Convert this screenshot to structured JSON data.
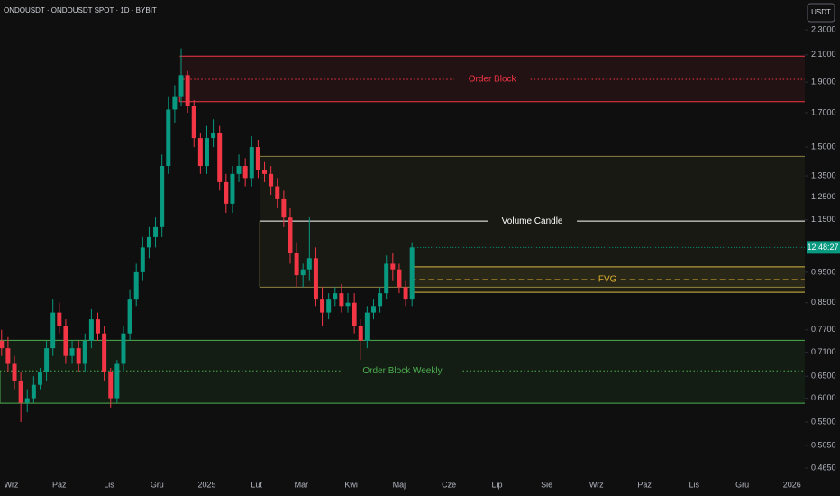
{
  "header": {
    "symbol": "ONDOUSDT · ONDOUSDT SPOT · 1D · BYBIT",
    "currency": "USDT",
    "time": "12:48:27"
  },
  "chart_data": {
    "type": "candlestick",
    "log_y": true,
    "up_color": "#089981",
    "down_color": "#f23645",
    "x": [
      -6,
      -2,
      2,
      6,
      10,
      14,
      18,
      22,
      26,
      30,
      34,
      38,
      42,
      46,
      50,
      54,
      58,
      62,
      66,
      70,
      74,
      78,
      82,
      86,
      90,
      94,
      98,
      102,
      106,
      110,
      114,
      118,
      122,
      126,
      130,
      134,
      138,
      142,
      146,
      150,
      154,
      158,
      162,
      166,
      170,
      174,
      178,
      182,
      186,
      190,
      194,
      198,
      202,
      206,
      210,
      214,
      218,
      222,
      226,
      230,
      234,
      238,
      242,
      246,
      250
    ],
    "open": [
      0.74,
      0.72,
      0.68,
      0.64,
      0.59,
      0.6,
      0.63,
      0.66,
      0.72,
      0.82,
      0.78,
      0.7,
      0.72,
      0.68,
      0.74,
      0.8,
      0.76,
      0.66,
      0.6,
      0.68,
      0.76,
      0.86,
      0.95,
      1.04,
      1.08,
      1.12,
      1.4,
      1.72,
      1.8,
      1.95,
      1.74,
      1.55,
      1.4,
      1.55,
      1.58,
      1.32,
      1.22,
      1.36,
      1.4,
      1.34,
      1.5,
      1.38,
      1.36,
      1.3,
      1.24,
      1.16,
      1.02,
      0.94,
      0.96,
      1.0,
      0.86,
      0.82,
      0.86,
      0.88,
      0.84,
      0.85,
      0.78,
      0.74,
      0.82,
      0.84,
      0.88,
      0.98,
      0.96,
      0.9,
      0.86
    ],
    "high": [
      0.77,
      0.75,
      0.7,
      0.66,
      0.62,
      0.65,
      0.67,
      0.74,
      0.86,
      0.85,
      0.8,
      0.74,
      0.74,
      0.76,
      0.83,
      0.82,
      0.78,
      0.67,
      0.69,
      0.78,
      0.89,
      0.98,
      1.08,
      1.12,
      1.16,
      1.46,
      1.8,
      1.88,
      2.15,
      1.98,
      1.78,
      1.58,
      1.62,
      1.66,
      1.62,
      1.36,
      1.4,
      1.46,
      1.44,
      1.56,
      1.54,
      1.42,
      1.4,
      1.34,
      1.28,
      1.2,
      1.06,
      0.98,
      1.16,
      1.04,
      0.9,
      0.88,
      0.9,
      0.91,
      0.88,
      0.88,
      0.8,
      0.84,
      0.86,
      0.9,
      1.01,
      1.02,
      0.98,
      0.92,
      1.06
    ],
    "low": [
      0.7,
      0.66,
      0.62,
      0.55,
      0.57,
      0.59,
      0.62,
      0.64,
      0.7,
      0.76,
      0.68,
      0.68,
      0.66,
      0.66,
      0.72,
      0.74,
      0.64,
      0.58,
      0.59,
      0.66,
      0.74,
      0.84,
      0.92,
      1.0,
      1.04,
      1.08,
      1.36,
      1.64,
      1.74,
      1.7,
      1.5,
      1.36,
      1.36,
      1.5,
      1.28,
      1.18,
      1.18,
      1.32,
      1.3,
      1.3,
      1.34,
      1.32,
      1.26,
      1.2,
      1.12,
      0.98,
      0.9,
      0.9,
      0.92,
      0.84,
      0.78,
      0.8,
      0.84,
      0.82,
      0.82,
      0.76,
      0.69,
      0.72,
      0.8,
      0.82,
      0.86,
      0.92,
      0.88,
      0.84,
      0.84
    ],
    "close": [
      0.72,
      0.68,
      0.64,
      0.59,
      0.6,
      0.63,
      0.66,
      0.72,
      0.82,
      0.78,
      0.7,
      0.72,
      0.68,
      0.74,
      0.8,
      0.76,
      0.66,
      0.6,
      0.68,
      0.76,
      0.86,
      0.95,
      1.04,
      1.08,
      1.12,
      1.4,
      1.72,
      1.8,
      1.95,
      1.74,
      1.55,
      1.4,
      1.55,
      1.58,
      1.32,
      1.22,
      1.36,
      1.4,
      1.34,
      1.5,
      1.38,
      1.36,
      1.3,
      1.24,
      1.16,
      1.02,
      0.94,
      0.96,
      1.0,
      0.86,
      0.82,
      0.86,
      0.88,
      0.84,
      0.85,
      0.78,
      0.74,
      0.82,
      0.84,
      0.88,
      0.98,
      0.96,
      0.9,
      0.86,
      1.04
    ],
    "xlim": [
      -7,
      495
    ],
    "xticks": [
      {
        "value": 0,
        "label": "Wrz"
      },
      {
        "value": 30,
        "label": "Paź"
      },
      {
        "value": 61,
        "label": "Lis"
      },
      {
        "value": 91,
        "label": "Gru"
      },
      {
        "value": 122,
        "label": "2025"
      },
      {
        "value": 153,
        "label": "Lut"
      },
      {
        "value": 181,
        "label": "Mar"
      },
      {
        "value": 212,
        "label": "Kwi"
      },
      {
        "value": 242,
        "label": "Maj"
      },
      {
        "value": 273,
        "label": "Cze"
      },
      {
        "value": 303,
        "label": "Lip"
      },
      {
        "value": 334,
        "label": "Sie"
      },
      {
        "value": 365,
        "label": "Wrz"
      },
      {
        "value": 395,
        "label": "Paź"
      },
      {
        "value": 426,
        "label": "Lis"
      },
      {
        "value": 456,
        "label": "Gru"
      },
      {
        "value": 487,
        "label": "2026"
      }
    ],
    "ylim": [
      0.434,
      2.565
    ],
    "yticks": [
      {
        "value": 2.3,
        "label": "2,3000"
      },
      {
        "value": 2.1,
        "label": "2,1000"
      },
      {
        "value": 1.9,
        "label": "1,9000"
      },
      {
        "value": 1.7,
        "label": "1,7000"
      },
      {
        "value": 1.5,
        "label": "1,5000"
      },
      {
        "value": 1.35,
        "label": "1,3500"
      },
      {
        "value": 1.25,
        "label": "1,2500"
      },
      {
        "value": 1.15,
        "label": "1,1500"
      },
      {
        "value": 0.95,
        "label": "0,9500"
      },
      {
        "value": 0.85,
        "label": "0,8500"
      },
      {
        "value": 0.77,
        "label": "0,7700"
      },
      {
        "value": 0.71,
        "label": "0,7100"
      },
      {
        "value": 0.65,
        "label": "0,6500"
      },
      {
        "value": 0.6,
        "label": "0,6000"
      },
      {
        "value": 0.55,
        "label": "0,5500"
      },
      {
        "value": 0.505,
        "label": "0,5050"
      },
      {
        "value": 0.465,
        "label": "0,4650"
      }
    ],
    "zones": [
      {
        "label": "Order Block",
        "color": "#f23645",
        "mid_color": "#f23645",
        "mid_style": "dotted",
        "top": 2.09,
        "bottom": 1.77,
        "mid": 1.92,
        "start": 105
      },
      {
        "label": "Volume Candle",
        "color": "#8a8040",
        "mid_color": "#ffffff",
        "mid_style": "solid",
        "top": 1.45,
        "bottom": 0.9,
        "mid": 1.145,
        "start": 155
      },
      {
        "label": "FVG",
        "color": "#d4b840",
        "mid_color": "#e0b030",
        "mid_style": "dashed",
        "top": 0.969,
        "bottom": 0.883,
        "mid": 0.925,
        "start": 249
      },
      {
        "label": "Order Block Weekly",
        "color": "#4caf50",
        "mid_color": "#4caf50",
        "mid_style": "dotted",
        "top": 0.741,
        "bottom": 0.589,
        "mid": 0.663,
        "start": -7
      }
    ]
  }
}
